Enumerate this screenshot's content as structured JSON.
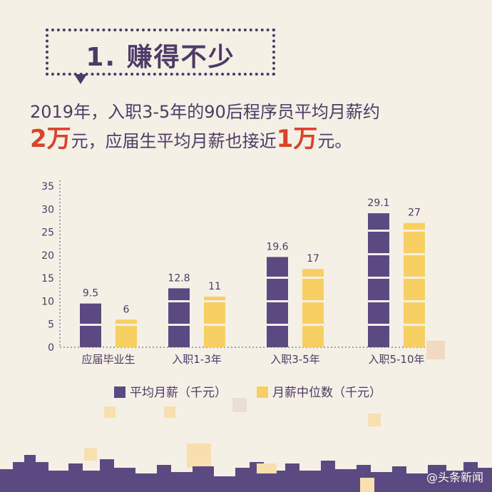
{
  "header": {
    "title": "1. 赚得不少"
  },
  "subtitle": {
    "line1": "2019年，入职3-5年的90后程序员平均月薪约",
    "big1": "2万",
    "mid": "元，应届生平均月薪也接近",
    "big2": "1万",
    "end": "元。"
  },
  "colors": {
    "purple": "#5b4a82",
    "yellow": "#f7cf62",
    "red": "#d9432b"
  },
  "chart_data": {
    "type": "bar",
    "categories": [
      "应届毕业生",
      "入职1-3年",
      "入职3-5年",
      "入职5-10年"
    ],
    "series": [
      {
        "name": "平均月薪（千元）",
        "values": [
          9.5,
          12.8,
          19.6,
          29.1
        ],
        "labels": [
          "9.5",
          "12.8",
          "19.6",
          "29.1"
        ],
        "color": "#5b4a82"
      },
      {
        "name": "月薪中位数（千元）",
        "values": [
          6,
          11,
          17,
          27
        ],
        "labels": [
          "6",
          "11",
          "17",
          "27"
        ],
        "color": "#f7cf62"
      }
    ],
    "yticks": [
      0,
      5,
      10,
      15,
      20,
      25,
      30,
      35
    ],
    "ylim": [
      0,
      35
    ],
    "legend": "bottom"
  },
  "legend": {
    "avg_label": "平均月薪（千元）",
    "median_label": "月薪中位数（千元）"
  },
  "watermark": "@头条新闻"
}
